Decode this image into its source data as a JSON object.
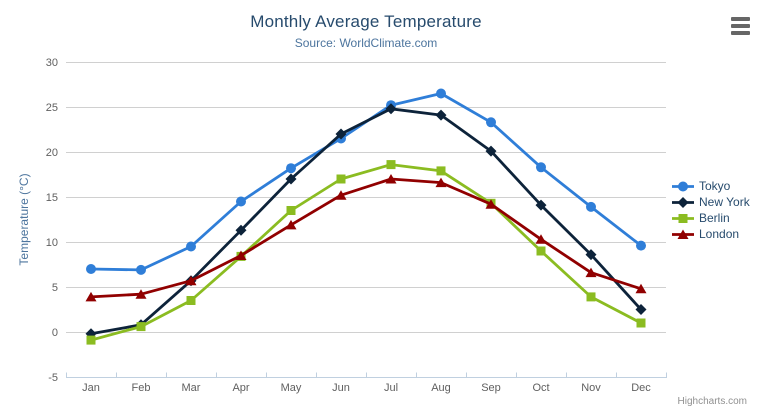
{
  "title": "Monthly Average Temperature",
  "subtitle": "Source: WorldClimate.com",
  "credits": "Highcharts.com",
  "menu": {
    "icon": "hamburger-menu-icon"
  },
  "chart_data": {
    "type": "line",
    "title": "Monthly Average Temperature",
    "subtitle": "Source: WorldClimate.com",
    "categories": [
      "Jan",
      "Feb",
      "Mar",
      "Apr",
      "May",
      "Jun",
      "Jul",
      "Aug",
      "Sep",
      "Oct",
      "Nov",
      "Dec"
    ],
    "series": [
      {
        "name": "Tokyo",
        "marker": "circle",
        "color": "#2f7ed8",
        "values": [
          7.0,
          6.9,
          9.5,
          14.5,
          18.2,
          21.5,
          25.2,
          26.5,
          23.3,
          18.3,
          13.9,
          9.6
        ]
      },
      {
        "name": "New York",
        "marker": "diamond",
        "color": "#0d233a",
        "values": [
          -0.2,
          0.8,
          5.7,
          11.3,
          17.0,
          22.0,
          24.8,
          24.1,
          20.1,
          14.1,
          8.6,
          2.5
        ]
      },
      {
        "name": "Berlin",
        "marker": "square",
        "color": "#8bbc21",
        "values": [
          -0.9,
          0.6,
          3.5,
          8.4,
          13.5,
          17.0,
          18.6,
          17.9,
          14.3,
          9.0,
          3.9,
          1.0
        ]
      },
      {
        "name": "London",
        "marker": "triangle",
        "color": "#910000",
        "values": [
          3.9,
          4.2,
          5.7,
          8.5,
          11.9,
          15.2,
          17.0,
          16.6,
          14.2,
          10.3,
          6.6,
          4.8
        ]
      }
    ],
    "xlabel": "",
    "ylabel": "Temperature (°C)",
    "ylim": [
      -5,
      30
    ],
    "ytick_interval": 5,
    "grid": true,
    "legend_position": "right"
  },
  "colors": {
    "title": "#274b6d",
    "subtitle": "#4d759e",
    "axis_title": "#4d759e",
    "axis_labels": "#606060",
    "grid_line": "#d0d0d0",
    "axis_line": "#c0d0e0",
    "legend_text": "#274b6d",
    "credits_text": "#909090",
    "menu_icon": "#666666"
  }
}
